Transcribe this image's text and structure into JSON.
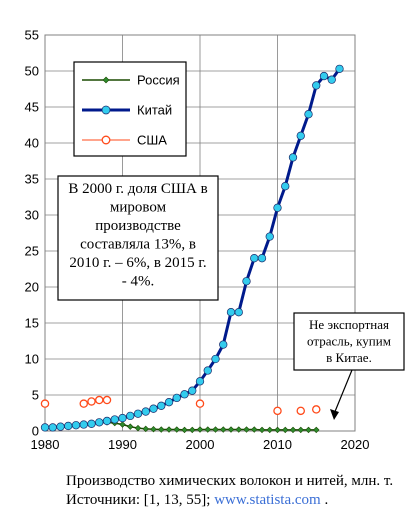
{
  "caption": {
    "text": "Производство химических волокон и нитей, млн. т.  Источники: [1, 13, 55];",
    "link": "www.statista.com",
    "end": " ."
  },
  "annotations": {
    "usa_share": [
      "В 2000 г. доля США в",
      "мировом",
      "производстве",
      "составляла 13%, в",
      "2010 г. – 6%, в 2015 г.",
      "-  4%."
    ],
    "china_note": [
      "Не экспортная",
      "отрасль, купим",
      "в Китае."
    ]
  },
  "colors": {
    "russia": "#1a4a00",
    "russia_marker": "#2e8b2e",
    "china_line": "#001a8c",
    "china_marker": "#33ccee",
    "usa": "#ff4a1a"
  },
  "chart_data": {
    "type": "line",
    "title": "",
    "xlabel": "",
    "ylabel": "",
    "xlim": [
      1980,
      2020
    ],
    "ylim": [
      0,
      55
    ],
    "xticks": [
      1980,
      1990,
      2000,
      2010,
      2020
    ],
    "yticks": [
      0,
      5,
      10,
      15,
      20,
      25,
      30,
      35,
      40,
      45,
      50,
      55
    ],
    "grid": true,
    "legend_position": "top-left",
    "series": [
      {
        "name": "Россия",
        "style": "line-diamond",
        "x": [
          1980,
          1981,
          1982,
          1983,
          1984,
          1985,
          1986,
          1987,
          1988,
          1989,
          1990,
          1991,
          1992,
          1993,
          1994,
          1995,
          1996,
          1997,
          1998,
          1999,
          2000,
          2001,
          2002,
          2003,
          2004,
          2005,
          2006,
          2007,
          2008,
          2009,
          2010,
          2011,
          2012,
          2013,
          2014,
          2015
        ],
        "y": [
          0.5,
          0.6,
          0.7,
          0.8,
          0.9,
          1.0,
          1.1,
          1.15,
          1.2,
          1.1,
          0.9,
          0.6,
          0.4,
          0.3,
          0.25,
          0.2,
          0.2,
          0.2,
          0.15,
          0.15,
          0.2,
          0.2,
          0.2,
          0.2,
          0.2,
          0.2,
          0.2,
          0.2,
          0.15,
          0.15,
          0.15,
          0.15,
          0.15,
          0.15,
          0.15,
          0.15
        ]
      },
      {
        "name": "Китай",
        "style": "thick-line-circle",
        "x": [
          1980,
          1981,
          1982,
          1983,
          1984,
          1985,
          1986,
          1987,
          1988,
          1989,
          1990,
          1991,
          1992,
          1993,
          1994,
          1995,
          1996,
          1997,
          1998,
          1999,
          2000,
          2001,
          2002,
          2003,
          2004,
          2005,
          2006,
          2007,
          2008,
          2009,
          2010,
          2011,
          2012,
          2013,
          2014,
          2015,
          2016,
          2017,
          2018
        ],
        "y": [
          0.5,
          0.5,
          0.6,
          0.7,
          0.8,
          0.9,
          1.0,
          1.2,
          1.4,
          1.6,
          1.8,
          2.1,
          2.4,
          2.7,
          3.1,
          3.5,
          4.0,
          4.6,
          5.1,
          5.6,
          6.9,
          8.4,
          10.0,
          12.0,
          16.5,
          16.5,
          20.8,
          24.0,
          24.0,
          27.0,
          31.0,
          34.0,
          38.0,
          41.0,
          44.0,
          48.0,
          49.3,
          48.8,
          50.3
        ]
      },
      {
        "name": "США",
        "style": "open-circle",
        "x": [
          1980,
          1985,
          1986,
          1987,
          1988,
          2000,
          2010,
          2013,
          2015
        ],
        "y": [
          3.8,
          3.8,
          4.1,
          4.3,
          4.3,
          3.8,
          2.8,
          2.8,
          3.0
        ]
      }
    ]
  }
}
